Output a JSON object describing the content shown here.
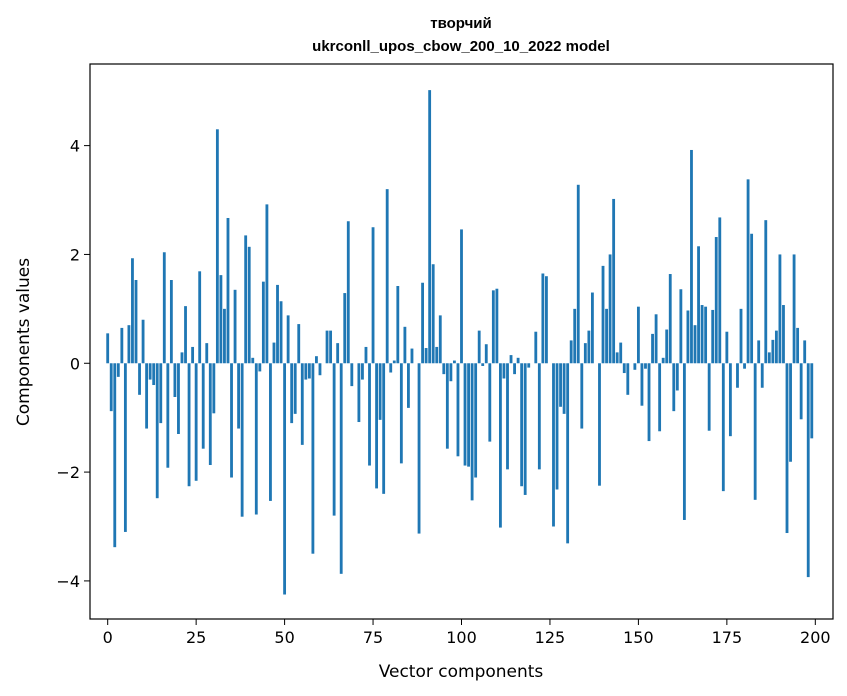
{
  "chart_data": {
    "type": "bar",
    "title": "творчий",
    "subtitle": "ukrconll_upos_cbow_200_10_2022 model",
    "xlabel": "Vector components",
    "ylabel": "Components values",
    "xlim": [
      -5,
      205
    ],
    "ylim": [
      -4.7,
      5.5
    ],
    "xticks": [
      0,
      25,
      50,
      75,
      100,
      125,
      150,
      175,
      200
    ],
    "yticks": [
      -4,
      -2,
      0,
      2,
      4
    ],
    "grid": false,
    "bar_color": "#1f77b4",
    "x": [
      0,
      1,
      2,
      3,
      4,
      5,
      6,
      7,
      8,
      9,
      10,
      11,
      12,
      13,
      14,
      15,
      16,
      17,
      18,
      19,
      20,
      21,
      22,
      23,
      24,
      25,
      26,
      27,
      28,
      29,
      30,
      31,
      32,
      33,
      34,
      35,
      36,
      37,
      38,
      39,
      40,
      41,
      42,
      43,
      44,
      45,
      46,
      47,
      48,
      49,
      50,
      51,
      52,
      53,
      54,
      55,
      56,
      57,
      58,
      59,
      60,
      61,
      62,
      63,
      64,
      65,
      66,
      67,
      68,
      69,
      70,
      71,
      72,
      73,
      74,
      75,
      76,
      77,
      78,
      79,
      80,
      81,
      82,
      83,
      84,
      85,
      86,
      87,
      88,
      89,
      90,
      91,
      92,
      93,
      94,
      95,
      96,
      97,
      98,
      99,
      100,
      101,
      102,
      103,
      104,
      105,
      106,
      107,
      108,
      109,
      110,
      111,
      112,
      113,
      114,
      115,
      116,
      117,
      118,
      119,
      120,
      121,
      122,
      123,
      124,
      125,
      126,
      127,
      128,
      129,
      130,
      131,
      132,
      133,
      134,
      135,
      136,
      137,
      138,
      139,
      140,
      141,
      142,
      143,
      144,
      145,
      146,
      147,
      148,
      149,
      150,
      151,
      152,
      153,
      154,
      155,
      156,
      157,
      158,
      159,
      160,
      161,
      162,
      163,
      164,
      165,
      166,
      167,
      168,
      169,
      170,
      171,
      172,
      173,
      174,
      175,
      176,
      177,
      178,
      179,
      180,
      181,
      182,
      183,
      184,
      185,
      186,
      187,
      188,
      189,
      190,
      191,
      192,
      193,
      194,
      195,
      196,
      197,
      198,
      199
    ],
    "values": [
      0.55,
      -0.88,
      -3.38,
      -0.25,
      0.65,
      -3.1,
      0.7,
      1.93,
      1.53,
      -0.58,
      0.8,
      -1.2,
      -0.3,
      -0.4,
      -2.48,
      -1.1,
      2.04,
      -1.92,
      1.53,
      -0.62,
      -1.3,
      0.2,
      1.05,
      -2.26,
      0.3,
      -2.16,
      1.69,
      -1.57,
      0.37,
      -1.87,
      -0.92,
      4.3,
      1.62,
      1.0,
      2.67,
      -2.1,
      1.35,
      -1.2,
      -2.82,
      2.35,
      2.14,
      0.1,
      -2.78,
      -0.15,
      1.5,
      2.92,
      -2.53,
      0.38,
      1.44,
      1.14,
      -4.25,
      0.88,
      -1.1,
      -0.93,
      0.72,
      -1.5,
      -0.3,
      -0.28,
      -3.5,
      0.13,
      -0.22,
      0.0,
      0.6,
      0.6,
      -2.8,
      0.37,
      -3.87,
      1.29,
      2.61,
      -0.42,
      0.0,
      -1.08,
      -0.3,
      0.3,
      -1.88,
      2.5,
      -2.3,
      -1.04,
      -2.4,
      3.2,
      -0.17,
      0.05,
      1.42,
      -1.84,
      0.67,
      -0.82,
      0.27,
      0.0,
      -3.13,
      1.48,
      0.28,
      5.02,
      1.82,
      0.3,
      0.88,
      -0.2,
      -1.57,
      -0.33,
      0.05,
      -1.71,
      2.46,
      -1.88,
      -1.9,
      -2.52,
      -2.1,
      0.6,
      -0.05,
      0.35,
      -1.44,
      1.34,
      1.37,
      -3.02,
      -0.28,
      -1.95,
      0.15,
      -0.2,
      0.1,
      -2.26,
      -2.42,
      -0.08,
      0.0,
      0.58,
      -1.95,
      1.65,
      1.6,
      0.0,
      -3.0,
      -2.32,
      -0.8,
      -0.93,
      -3.31,
      0.42,
      1.0,
      3.28,
      -1.2,
      0.37,
      0.6,
      1.3,
      0.0,
      -2.25,
      1.79,
      1.0,
      2.0,
      3.02,
      0.2,
      0.38,
      -0.18,
      -0.58,
      0.0,
      -0.12,
      1.04,
      -0.78,
      -0.1,
      -1.43,
      0.54,
      0.9,
      -1.25,
      0.1,
      0.62,
      1.64,
      -0.88,
      -0.5,
      1.36,
      -2.88,
      0.97,
      3.92,
      0.7,
      2.15,
      1.07,
      1.04,
      -1.24,
      0.98,
      2.32,
      2.68,
      -2.35,
      0.58,
      -1.34,
      0.0,
      -0.45,
      1.0,
      -0.1,
      3.38,
      2.38,
      -2.51,
      0.42,
      -0.45,
      2.63,
      0.2,
      0.43,
      0.6,
      2.0,
      1.07,
      -3.12,
      -1.81,
      2.0,
      0.65,
      -1.03,
      0.42,
      -3.93,
      -1.38
    ]
  }
}
